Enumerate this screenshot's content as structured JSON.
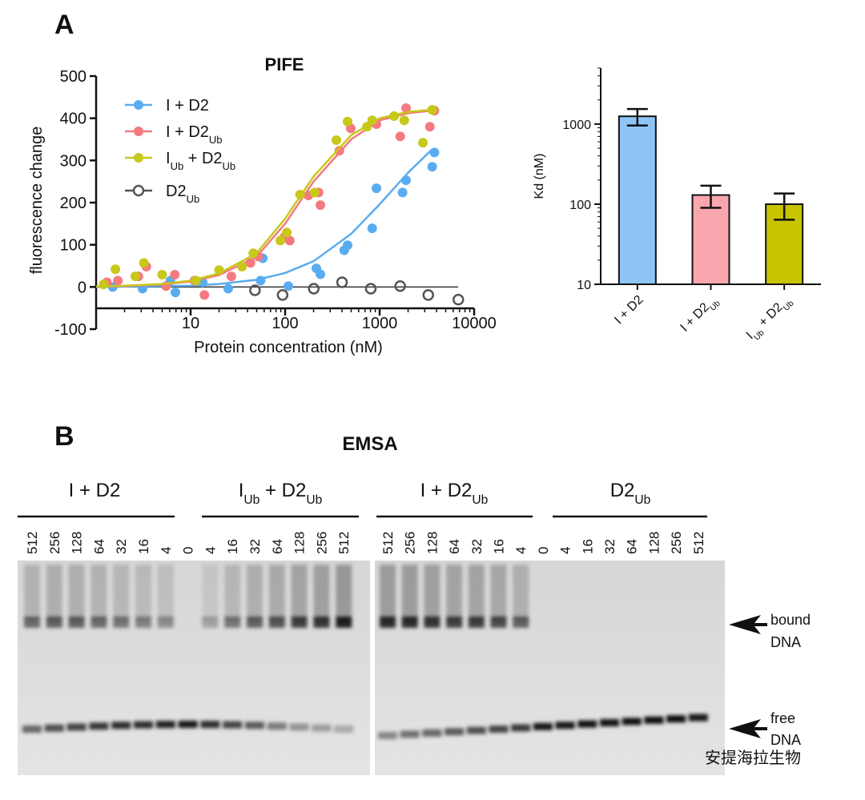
{
  "panel_labels": [
    "A",
    "B"
  ],
  "chart_data": [
    {
      "type": "scatter",
      "title": "PIFE",
      "x_label": "Protein concentration (nM)",
      "y_label": "fluorescence change",
      "x_scale": "log",
      "xlim": [
        1,
        10000
      ],
      "xticks": [
        10,
        100,
        1000,
        10000
      ],
      "ylim": [
        -100,
        500
      ],
      "yticks": [
        -100,
        0,
        100,
        200,
        300,
        400,
        500
      ],
      "legend": "upper-left",
      "fit_x": [
        1,
        2,
        5,
        10,
        20,
        50,
        100,
        200,
        500,
        1000,
        2000,
        3500
      ],
      "series": [
        {
          "name": "I + D2",
          "color": "#5aacf0",
          "filled": true,
          "x": [
            1.5,
            3.1,
            6.1,
            6.9,
            13.4,
            25,
            55,
            58,
            108,
            214,
            236,
            422,
            458,
            834,
            925,
            1747,
            1905,
            3600,
            3800
          ],
          "values": [
            0,
            -4,
            15,
            -13,
            11,
            -4,
            15,
            68,
            2,
            44,
            30,
            87,
            99,
            139,
            234,
            224,
            253,
            285,
            319
          ],
          "fit": [
            0,
            1,
            2,
            3,
            7,
            17,
            33,
            61,
            126,
            196,
            271,
            324
          ]
        },
        {
          "name": "I + D2Ub",
          "color": "#f47a80",
          "filled": true,
          "x": [
            1.3,
            1.7,
            2.8,
            3.4,
            5.5,
            6.8,
            11,
            14,
            27,
            43,
            52,
            98,
            112,
            176,
            226,
            236,
            375,
            495,
            925,
            1650,
            1905,
            3400,
            3800
          ],
          "values": [
            11,
            15,
            25,
            48,
            2,
            29,
            15,
            -19,
            25,
            57,
            72,
            118,
            110,
            217,
            224,
            194,
            323,
            376,
            386,
            357,
            424,
            380,
            418
          ],
          "fit": [
            1,
            2,
            6,
            13,
            28,
            72,
            150,
            250,
            350,
            395,
            412,
            418
          ]
        },
        {
          "name": "IUb + D2Ub",
          "color": "#c7c81a",
          "filled": true,
          "x": [
            1.2,
            1.6,
            2.6,
            3.2,
            5,
            11.4,
            20,
            35,
            46,
            89,
            104,
            144,
            205,
            348,
            458,
            735,
            834,
            1424,
            1822,
            2870,
            3600
          ],
          "values": [
            6,
            42,
            25,
            57,
            29,
            15,
            40,
            48,
            80,
            110,
            129,
            219,
            224,
            348,
            392,
            380,
            395,
            405,
            395,
            342,
            420
          ],
          "fit": [
            1,
            3,
            7,
            15,
            32,
            80,
            162,
            262,
            360,
            400,
            415,
            420
          ]
        },
        {
          "name": "D2Ub",
          "color": "#555555",
          "filled": false,
          "x": [
            48,
            94,
            201,
            400,
            806,
            1650,
            3270,
            6800
          ],
          "values": [
            -8,
            -19,
            -4,
            11,
            -4,
            2,
            -19,
            -30
          ]
        }
      ]
    },
    {
      "type": "bar",
      "y_label": "Kd (nM)",
      "y_scale": "log",
      "ylim": [
        10,
        5000
      ],
      "yticks": [
        10,
        100,
        1000
      ],
      "categories": [
        "I + D2",
        "I + D2Ub",
        "IUb + D2Ub"
      ],
      "values": [
        1250,
        130,
        100
      ],
      "errors": [
        290,
        40,
        36
      ],
      "colors": [
        "#8ec5f6",
        "#f9a6ae",
        "#c8c400"
      ]
    }
  ],
  "gel": {
    "title": "EMSA",
    "groups": [
      "I + D2",
      "IUb + D2Ub",
      "I + D2Ub",
      "D2Ub"
    ],
    "lanes": [
      [
        512,
        256,
        128,
        64,
        32,
        16,
        4,
        0,
        4,
        16,
        32,
        64,
        128,
        256,
        512
      ],
      [
        512,
        256,
        128,
        64,
        32,
        16,
        4,
        0,
        4,
        16,
        32,
        64,
        128,
        256,
        512
      ]
    ],
    "markers": [
      [
        "bound",
        "DNA"
      ],
      [
        "free",
        "DNA"
      ]
    ]
  },
  "watermark": "安提海拉生物"
}
